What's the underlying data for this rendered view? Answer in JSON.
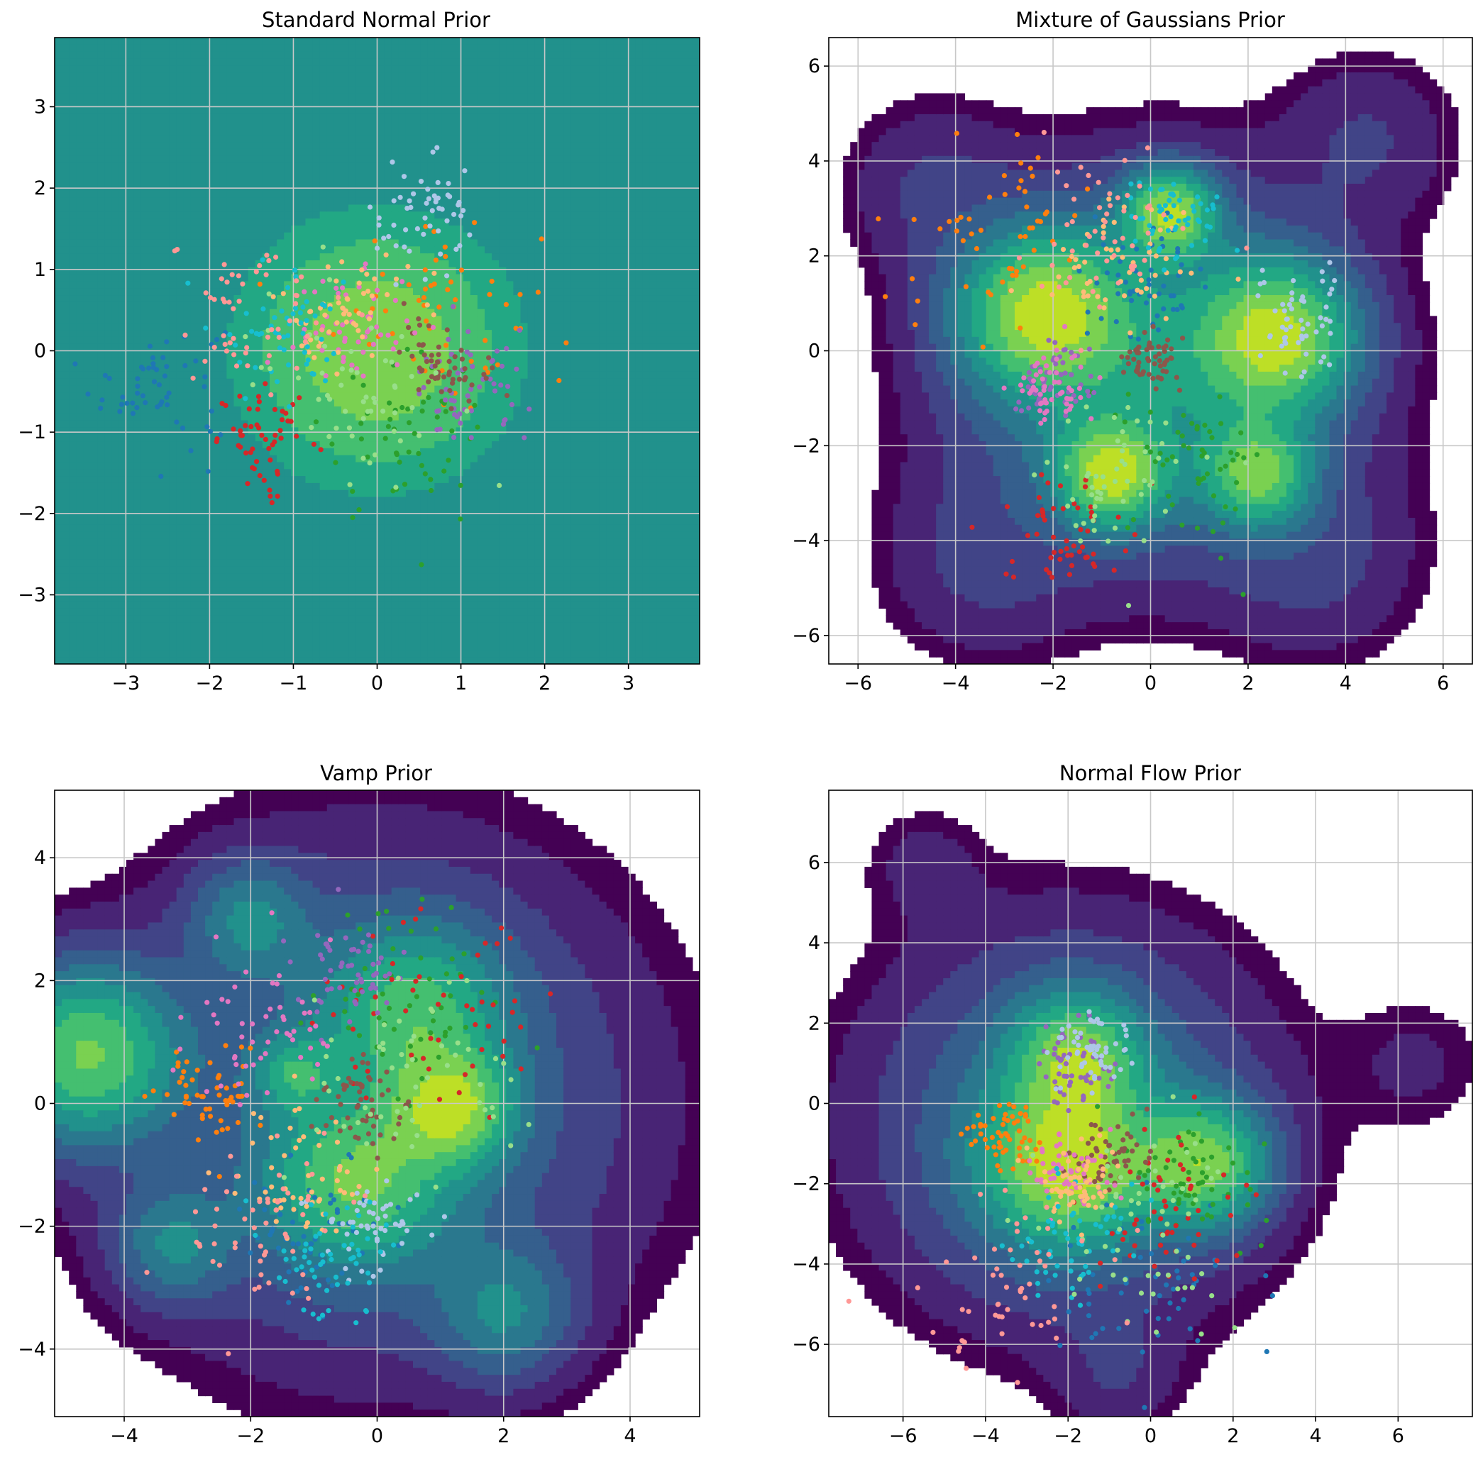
{
  "chart_data": [
    {
      "type": "scatter",
      "title": "Standard Normal Prior",
      "xlim": [
        -3.85,
        3.85
      ],
      "ylim": [
        -3.85,
        3.85
      ],
      "xticks": [
        -3,
        -2,
        -1,
        0,
        1,
        2,
        3
      ],
      "yticks": [
        -3,
        -2,
        -1,
        0,
        1,
        2,
        3
      ],
      "grid": true,
      "background": "filled density contours (viridis)",
      "density_components": [
        {
          "mx": 0,
          "my": 0,
          "s": 1.0,
          "w": 1
        }
      ],
      "cluster_centers": [
        {
          "color": "#1f77b4",
          "x": -2.6,
          "y": -0.4,
          "s": 0.4
        },
        {
          "color": "#ff7f0e",
          "x": 0.7,
          "y": 0.6,
          "s": 0.6
        },
        {
          "color": "#2ca02c",
          "x": 0.3,
          "y": -1.1,
          "s": 0.5
        },
        {
          "color": "#d62728",
          "x": -1.3,
          "y": -1.1,
          "s": 0.3
        },
        {
          "color": "#9467bd",
          "x": 1.1,
          "y": -0.5,
          "s": 0.35
        },
        {
          "color": "#8c564b",
          "x": 0.8,
          "y": -0.1,
          "s": 0.25
        },
        {
          "color": "#e377c2",
          "x": -0.3,
          "y": 0.3,
          "s": 0.35
        },
        {
          "color": "#aec7e8",
          "x": 0.6,
          "y": 1.6,
          "s": 0.35
        },
        {
          "color": "#ffbb78",
          "x": -0.4,
          "y": 0.5,
          "s": 0.4
        },
        {
          "color": "#17becf",
          "x": -1.1,
          "y": 0.3,
          "s": 0.4
        },
        {
          "color": "#98df8a",
          "x": -0.3,
          "y": -0.4,
          "s": 0.6
        },
        {
          "color": "#ff9896",
          "x": -1.5,
          "y": 0.5,
          "s": 0.5
        }
      ]
    },
    {
      "type": "scatter",
      "title": "Mixture of Gaussians Prior",
      "xlim": [
        -6.6,
        6.6
      ],
      "ylim": [
        -6.6,
        6.6
      ],
      "xticks": [
        -6,
        -4,
        -2,
        0,
        2,
        4,
        6
      ],
      "yticks": [
        -6,
        -4,
        -2,
        0,
        2,
        4,
        6
      ],
      "grid": true,
      "background": "filled density contours (viridis)",
      "density_components": [
        {
          "mx": -2.2,
          "my": 0.8,
          "s": 1.1,
          "w": 1
        },
        {
          "mx": 0.4,
          "my": 2.9,
          "s": 0.6,
          "w": 1
        },
        {
          "mx": 2.6,
          "my": 0.3,
          "s": 1.0,
          "w": 1
        },
        {
          "mx": -0.8,
          "my": -2.6,
          "s": 0.7,
          "w": 1
        },
        {
          "mx": 2.2,
          "my": -2.6,
          "s": 0.7,
          "w": 0.8
        },
        {
          "mx": 0.1,
          "my": -0.4,
          "s": 2.4,
          "w": 0.5
        },
        {
          "mx": -4.5,
          "my": 3.5,
          "s": 1.2,
          "w": 0.1
        },
        {
          "mx": 4.5,
          "my": 4.5,
          "s": 1.2,
          "w": 0.1
        },
        {
          "mx": 3.5,
          "my": -4.5,
          "s": 1.4,
          "w": 0.1
        },
        {
          "mx": -3.5,
          "my": -4.5,
          "s": 1.4,
          "w": 0.1
        }
      ],
      "cluster_centers": [
        {
          "color": "#1f77b4",
          "x": 0.0,
          "y": 1.5,
          "s": 0.6
        },
        {
          "color": "#ff7f0e",
          "x": -3.2,
          "y": 2.5,
          "s": 1.0
        },
        {
          "color": "#2ca02c",
          "x": 0.9,
          "y": -2.3,
          "s": 0.8
        },
        {
          "color": "#d62728",
          "x": -1.8,
          "y": -3.8,
          "s": 0.6
        },
        {
          "color": "#9467bd",
          "x": -2.1,
          "y": -0.7,
          "s": 0.45
        },
        {
          "color": "#8c564b",
          "x": 0.0,
          "y": -0.2,
          "s": 0.3
        },
        {
          "color": "#e377c2",
          "x": -2.0,
          "y": -0.8,
          "s": 0.4
        },
        {
          "color": "#aec7e8",
          "x": 3.0,
          "y": 0.6,
          "s": 0.5
        },
        {
          "color": "#ffbb78",
          "x": -0.6,
          "y": 1.8,
          "s": 0.8
        },
        {
          "color": "#17becf",
          "x": 0.4,
          "y": 2.8,
          "s": 0.5
        },
        {
          "color": "#98df8a",
          "x": -0.7,
          "y": -2.8,
          "s": 0.7
        },
        {
          "color": "#ff9896",
          "x": -1.0,
          "y": 2.6,
          "s": 0.8
        }
      ]
    },
    {
      "type": "scatter",
      "title": "Vamp Prior",
      "xlim": [
        -5.1,
        5.1
      ],
      "ylim": [
        -5.1,
        5.1
      ],
      "xticks": [
        -4,
        -2,
        0,
        2,
        4
      ],
      "yticks": [
        -4,
        -2,
        0,
        2,
        4
      ],
      "grid": true,
      "background": "filled density contours (viridis)",
      "density_components": [
        {
          "mx": -4.6,
          "my": 0.8,
          "s": 0.9,
          "w": 1
        },
        {
          "mx": 1.2,
          "my": -0.1,
          "s": 0.6,
          "w": 1
        },
        {
          "mx": 0.6,
          "my": 1.5,
          "s": 0.9,
          "w": 0.7
        },
        {
          "mx": -0.3,
          "my": -1.3,
          "s": 0.9,
          "w": 0.8
        },
        {
          "mx": -2.0,
          "my": 3.0,
          "s": 0.6,
          "w": 0.4
        },
        {
          "mx": -3.2,
          "my": -2.3,
          "s": 0.6,
          "w": 0.4
        },
        {
          "mx": 2.0,
          "my": -3.4,
          "s": 0.7,
          "w": 0.4
        },
        {
          "mx": -1.3,
          "my": 0.5,
          "s": 0.4,
          "w": 0.5
        },
        {
          "mx": 0.0,
          "my": 0.0,
          "s": 2.6,
          "w": 0.35
        }
      ],
      "cluster_centers": [
        {
          "color": "#1f77b4",
          "x": -1.0,
          "y": -2.0,
          "s": 0.6
        },
        {
          "color": "#ff7f0e",
          "x": -2.6,
          "y": 0.1,
          "s": 0.4
        },
        {
          "color": "#2ca02c",
          "x": 0.5,
          "y": 1.7,
          "s": 0.8
        },
        {
          "color": "#d62728",
          "x": 1.0,
          "y": 1.6,
          "s": 0.9
        },
        {
          "color": "#9467bd",
          "x": -0.4,
          "y": 2.1,
          "s": 0.4
        },
        {
          "color": "#8c564b",
          "x": -0.2,
          "y": 0.0,
          "s": 0.4
        },
        {
          "color": "#e377c2",
          "x": -1.8,
          "y": 1.2,
          "s": 0.6
        },
        {
          "color": "#aec7e8",
          "x": -0.1,
          "y": -1.9,
          "s": 0.4
        },
        {
          "color": "#ffbb78",
          "x": -1.2,
          "y": -1.2,
          "s": 0.5
        },
        {
          "color": "#17becf",
          "x": -0.8,
          "y": -2.6,
          "s": 0.5
        },
        {
          "color": "#98df8a",
          "x": 0.5,
          "y": 0.5,
          "s": 0.9
        },
        {
          "color": "#ff9896",
          "x": -1.9,
          "y": -2.1,
          "s": 0.7
        }
      ]
    },
    {
      "type": "scatter",
      "title": "Normal Flow Prior",
      "xlim": [
        -7.8,
        7.8
      ],
      "ylim": [
        -7.8,
        7.8
      ],
      "xticks": [
        -6,
        -4,
        -2,
        0,
        2,
        4,
        6
      ],
      "yticks": [
        -6,
        -4,
        -2,
        0,
        2,
        4,
        6
      ],
      "grid": true,
      "background": "filled density contours (viridis)",
      "density_components": [
        {
          "mx": -2.0,
          "my": -1.5,
          "s": 1.3,
          "w": 1
        },
        {
          "mx": 1.3,
          "my": -1.5,
          "s": 1.0,
          "w": 0.9
        },
        {
          "mx": -1.8,
          "my": 1.2,
          "s": 1.0,
          "w": 0.8
        },
        {
          "mx": -2.0,
          "my": -0.5,
          "s": 3.0,
          "w": 0.35
        },
        {
          "mx": 6.5,
          "my": 1.0,
          "s": 1.2,
          "w": 0.06
        },
        {
          "mx": -5.5,
          "my": 6.0,
          "s": 1.0,
          "w": 0.06
        },
        {
          "mx": -0.8,
          "my": -6.8,
          "s": 1.0,
          "w": 0.08
        }
      ],
      "cluster_centers": [
        {
          "color": "#1f77b4",
          "x": 0.0,
          "y": -4.5,
          "s": 1.2
        },
        {
          "color": "#ff7f0e",
          "x": -3.5,
          "y": -0.9,
          "s": 0.5
        },
        {
          "color": "#2ca02c",
          "x": 1.0,
          "y": -1.8,
          "s": 0.8
        },
        {
          "color": "#d62728",
          "x": 0.5,
          "y": -2.5,
          "s": 1.0
        },
        {
          "color": "#9467bd",
          "x": -1.8,
          "y": 1.0,
          "s": 0.6
        },
        {
          "color": "#8c564b",
          "x": -1.0,
          "y": -1.2,
          "s": 0.5
        },
        {
          "color": "#e377c2",
          "x": -2.0,
          "y": -1.8,
          "s": 0.5
        },
        {
          "color": "#aec7e8",
          "x": -1.6,
          "y": 1.3,
          "s": 0.5
        },
        {
          "color": "#ffbb78",
          "x": -1.8,
          "y": -2.0,
          "s": 0.6
        },
        {
          "color": "#17becf",
          "x": -2.0,
          "y": -3.5,
          "s": 0.8
        },
        {
          "color": "#98df8a",
          "x": 0.0,
          "y": -3.0,
          "s": 1.2
        },
        {
          "color": "#ff9896",
          "x": -3.5,
          "y": -4.5,
          "s": 1.2
        }
      ]
    }
  ],
  "colors": {
    "viridis": [
      "#440154",
      "#482475",
      "#414487",
      "#355f8d",
      "#2a788e",
      "#21918c",
      "#22a884",
      "#44bf70",
      "#7ad151",
      "#bddf26",
      "#fde725"
    ]
  }
}
